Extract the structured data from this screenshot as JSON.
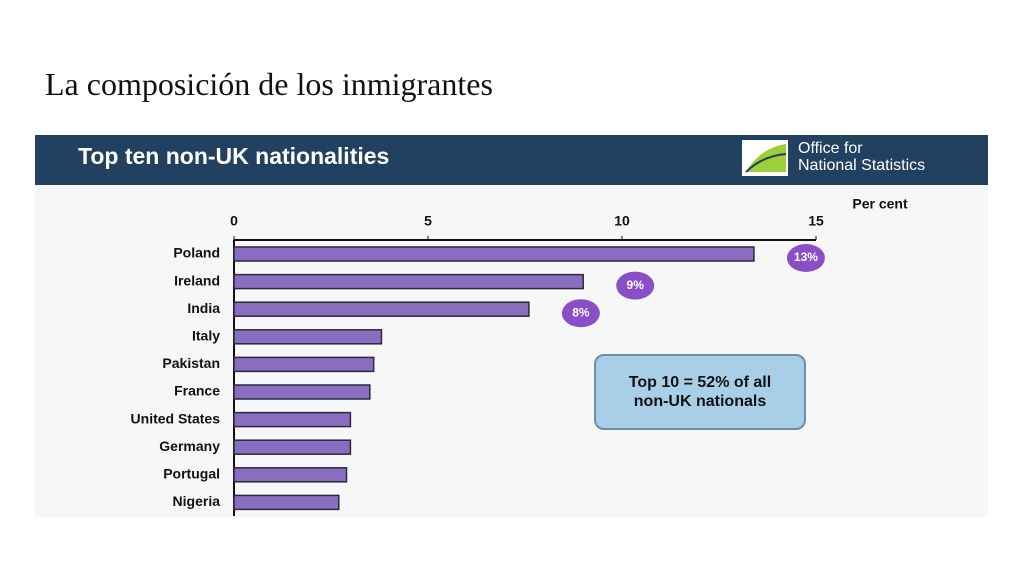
{
  "slide_title": "La composición de los inmigrantes",
  "logo_text": [
    "Office for",
    "National Statistics"
  ],
  "chart_data": {
    "type": "barh",
    "title": "Top ten non-UK nationalities",
    "x_label": "Per cent",
    "categories": [
      "Poland",
      "Ireland",
      "India",
      "Italy",
      "Pakistan",
      "France",
      "United States",
      "Germany",
      "Portugal",
      "Nigeria"
    ],
    "values": [
      13.4,
      9.0,
      7.6,
      3.8,
      3.6,
      3.5,
      3.0,
      3.0,
      2.9,
      2.7
    ],
    "value_labels": [
      "13%",
      "9%",
      "8%",
      null,
      null,
      null,
      null,
      null,
      null,
      null
    ],
    "color": "#8a6cc0",
    "xlim": [
      0,
      15
    ],
    "xticks": [
      0,
      5,
      10,
      15
    ],
    "annotation": "Top 10 = 52% of all non-UK nationals"
  }
}
